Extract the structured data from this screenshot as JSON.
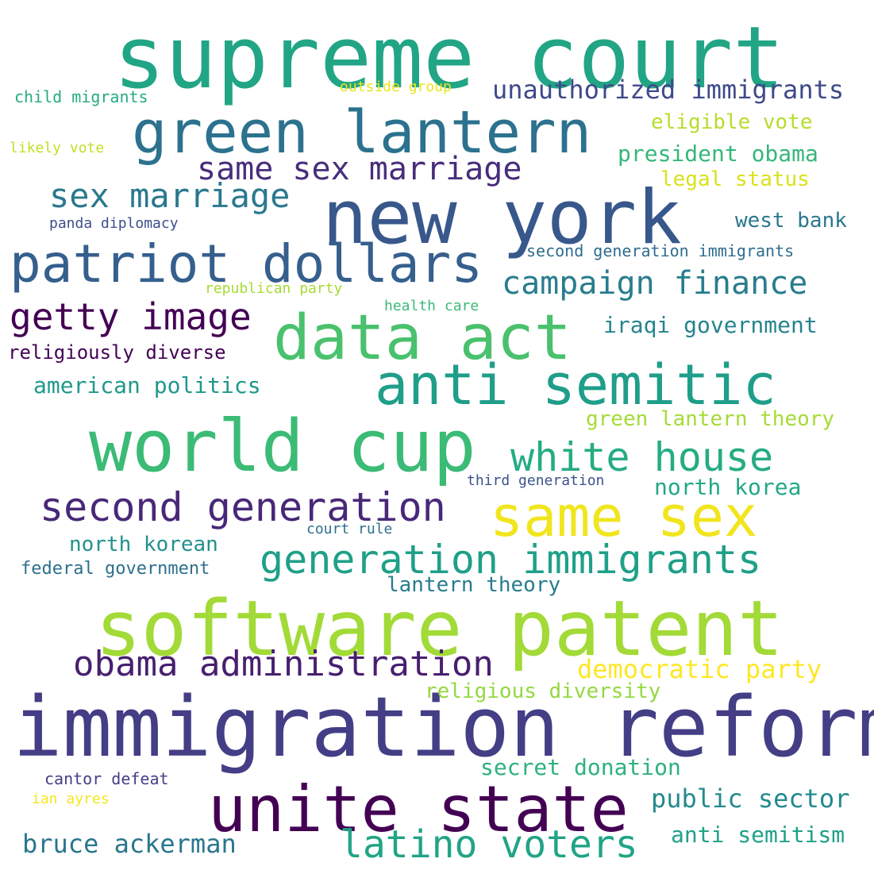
{
  "words": [
    {
      "id": "supreme-court",
      "text": "supreme court",
      "color": "#21a585"
    },
    {
      "id": "immigration-reform",
      "text": "immigration reform",
      "color": "#433e85"
    },
    {
      "id": "software-patent",
      "text": "software patent",
      "color": "#a2da37"
    },
    {
      "id": "new-york",
      "text": "new york",
      "color": "#38588c"
    },
    {
      "id": "world-cup",
      "text": "world cup",
      "color": "#3bbb75"
    },
    {
      "id": "unite-state",
      "text": "unite state",
      "color": "#440154"
    },
    {
      "id": "green-lantern",
      "text": "green lantern",
      "color": "#2c728e"
    },
    {
      "id": "data-act",
      "text": "data act",
      "color": "#4ac16d"
    },
    {
      "id": "anti-semitic",
      "text": "anti semitic",
      "color": "#1f9e89"
    },
    {
      "id": "patriot-dollars",
      "text": "patriot dollars",
      "color": "#355f8d"
    },
    {
      "id": "same-sex",
      "text": "same sex",
      "color": "#f1e51d"
    },
    {
      "id": "second-generation",
      "text": "second generation",
      "color": "#482878"
    },
    {
      "id": "white-house",
      "text": "white house",
      "color": "#25ac82"
    },
    {
      "id": "generation-immigrants",
      "text": "generation immigrants",
      "color": "#1fa088"
    },
    {
      "id": "obama-administration",
      "text": "obama administration",
      "color": "#481f70"
    },
    {
      "id": "latino-voters",
      "text": "latino voters",
      "color": "#20a486"
    },
    {
      "id": "getty-image",
      "text": "getty image",
      "color": "#440154"
    },
    {
      "id": "sex-marriage",
      "text": "sex marriage",
      "color": "#2a788e"
    },
    {
      "id": "same-sex-marriage",
      "text": "same sex marriage",
      "color": "#472d7b"
    },
    {
      "id": "campaign-finance",
      "text": "campaign finance",
      "color": "#287d8e"
    },
    {
      "id": "unauthorized-immigrants",
      "text": "unauthorized immigrants",
      "color": "#3e4a89"
    },
    {
      "id": "democratic-party",
      "text": "democratic party",
      "color": "#fde725"
    },
    {
      "id": "bruce-ackerman",
      "text": "bruce ackerman",
      "color": "#2a768e"
    },
    {
      "id": "public-sector",
      "text": "public sector",
      "color": "#238a8d"
    },
    {
      "id": "anti-semitism",
      "text": "anti semitism",
      "color": "#1fa188"
    },
    {
      "id": "secret-donation",
      "text": "secret donation",
      "color": "#2db27d"
    },
    {
      "id": "president-obama",
      "text": "president obama",
      "color": "#35b779"
    },
    {
      "id": "iraqi-government",
      "text": "iraqi government",
      "color": "#25848e"
    },
    {
      "id": "north-korea",
      "text": "north korea",
      "color": "#22a884"
    },
    {
      "id": "american-politics",
      "text": "american politics",
      "color": "#1f998a"
    },
    {
      "id": "religiously-diverse",
      "text": "religiously diverse",
      "color": "#440154"
    },
    {
      "id": "eligible-vote",
      "text": "eligible vote",
      "color": "#b5de2b"
    },
    {
      "id": "legal-status",
      "text": "legal status",
      "color": "#d8e219"
    },
    {
      "id": "west-bank",
      "text": "west bank",
      "color": "#2a778e"
    },
    {
      "id": "green-lantern-theory",
      "text": "green lantern theory",
      "color": "#a5db36"
    },
    {
      "id": "religious-diversity",
      "text": "religious diversity",
      "color": "#95d840"
    },
    {
      "id": "north-korean",
      "text": "north korean",
      "color": "#21918c"
    },
    {
      "id": "lantern-theory",
      "text": "lantern theory",
      "color": "#287c8e"
    },
    {
      "id": "federal-government",
      "text": "federal government",
      "color": "#2d708e"
    },
    {
      "id": "second-generation-immigrants",
      "text": "second generation immigrants",
      "color": "#2f6c8e"
    },
    {
      "id": "child-migrants",
      "text": "child migrants",
      "color": "#25ab82"
    },
    {
      "id": "cantor-defeat",
      "text": "cantor defeat",
      "color": "#424086"
    },
    {
      "id": "third-generation",
      "text": "third generation",
      "color": "#3b528b"
    },
    {
      "id": "panda-diplomacy",
      "text": "panda diplomacy",
      "color": "#3d4e8a"
    },
    {
      "id": "likely-vote",
      "text": "likely vote",
      "color": "#c2df23"
    },
    {
      "id": "outside-group",
      "text": "outside group",
      "color": "#eae51a"
    },
    {
      "id": "republican-party",
      "text": "republican party",
      "color": "#a8db34"
    },
    {
      "id": "health-care",
      "text": "health care",
      "color": "#3aba76"
    },
    {
      "id": "court-rule",
      "text": "court rule",
      "color": "#2e6f8e"
    },
    {
      "id": "ian-ayres",
      "text": "ian ayres",
      "color": "#f4e61e"
    }
  ]
}
